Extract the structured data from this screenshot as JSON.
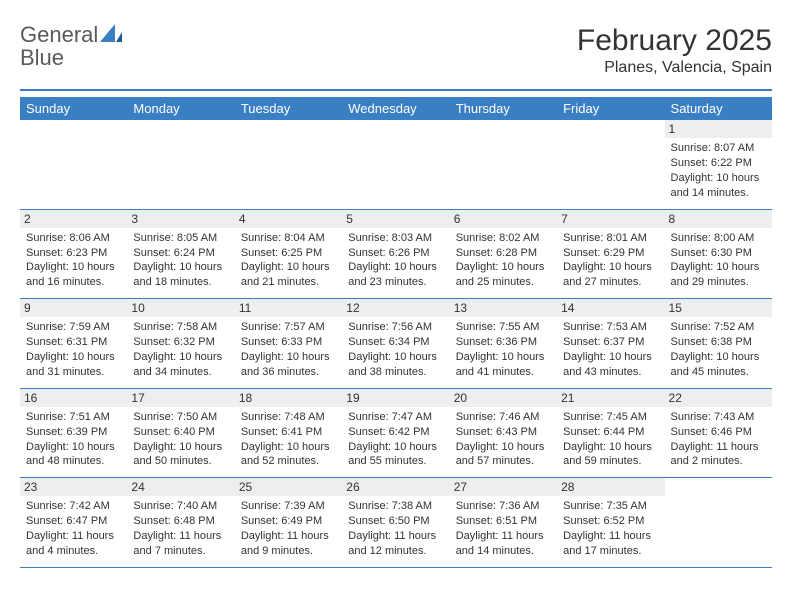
{
  "logo": {
    "word1": "General",
    "word2": "Blue"
  },
  "title": "February 2025",
  "subtitle": "Planes, Valencia, Spain",
  "colors": {
    "accent": "#3a7fc4",
    "header_bg": "#3a7fc4",
    "header_text": "#ffffff",
    "daynum_bg": "#eceeef",
    "text": "#333333",
    "logo_gray": "#5a5a5a"
  },
  "weekdays": [
    "Sunday",
    "Monday",
    "Tuesday",
    "Wednesday",
    "Thursday",
    "Friday",
    "Saturday"
  ],
  "weeks": [
    [
      {
        "n": "",
        "sunrise": "",
        "sunset": "",
        "daylight": ""
      },
      {
        "n": "",
        "sunrise": "",
        "sunset": "",
        "daylight": ""
      },
      {
        "n": "",
        "sunrise": "",
        "sunset": "",
        "daylight": ""
      },
      {
        "n": "",
        "sunrise": "",
        "sunset": "",
        "daylight": ""
      },
      {
        "n": "",
        "sunrise": "",
        "sunset": "",
        "daylight": ""
      },
      {
        "n": "",
        "sunrise": "",
        "sunset": "",
        "daylight": ""
      },
      {
        "n": "1",
        "sunrise": "Sunrise: 8:07 AM",
        "sunset": "Sunset: 6:22 PM",
        "daylight": "Daylight: 10 hours and 14 minutes."
      }
    ],
    [
      {
        "n": "2",
        "sunrise": "Sunrise: 8:06 AM",
        "sunset": "Sunset: 6:23 PM",
        "daylight": "Daylight: 10 hours and 16 minutes."
      },
      {
        "n": "3",
        "sunrise": "Sunrise: 8:05 AM",
        "sunset": "Sunset: 6:24 PM",
        "daylight": "Daylight: 10 hours and 18 minutes."
      },
      {
        "n": "4",
        "sunrise": "Sunrise: 8:04 AM",
        "sunset": "Sunset: 6:25 PM",
        "daylight": "Daylight: 10 hours and 21 minutes."
      },
      {
        "n": "5",
        "sunrise": "Sunrise: 8:03 AM",
        "sunset": "Sunset: 6:26 PM",
        "daylight": "Daylight: 10 hours and 23 minutes."
      },
      {
        "n": "6",
        "sunrise": "Sunrise: 8:02 AM",
        "sunset": "Sunset: 6:28 PM",
        "daylight": "Daylight: 10 hours and 25 minutes."
      },
      {
        "n": "7",
        "sunrise": "Sunrise: 8:01 AM",
        "sunset": "Sunset: 6:29 PM",
        "daylight": "Daylight: 10 hours and 27 minutes."
      },
      {
        "n": "8",
        "sunrise": "Sunrise: 8:00 AM",
        "sunset": "Sunset: 6:30 PM",
        "daylight": "Daylight: 10 hours and 29 minutes."
      }
    ],
    [
      {
        "n": "9",
        "sunrise": "Sunrise: 7:59 AM",
        "sunset": "Sunset: 6:31 PM",
        "daylight": "Daylight: 10 hours and 31 minutes."
      },
      {
        "n": "10",
        "sunrise": "Sunrise: 7:58 AM",
        "sunset": "Sunset: 6:32 PM",
        "daylight": "Daylight: 10 hours and 34 minutes."
      },
      {
        "n": "11",
        "sunrise": "Sunrise: 7:57 AM",
        "sunset": "Sunset: 6:33 PM",
        "daylight": "Daylight: 10 hours and 36 minutes."
      },
      {
        "n": "12",
        "sunrise": "Sunrise: 7:56 AM",
        "sunset": "Sunset: 6:34 PM",
        "daylight": "Daylight: 10 hours and 38 minutes."
      },
      {
        "n": "13",
        "sunrise": "Sunrise: 7:55 AM",
        "sunset": "Sunset: 6:36 PM",
        "daylight": "Daylight: 10 hours and 41 minutes."
      },
      {
        "n": "14",
        "sunrise": "Sunrise: 7:53 AM",
        "sunset": "Sunset: 6:37 PM",
        "daylight": "Daylight: 10 hours and 43 minutes."
      },
      {
        "n": "15",
        "sunrise": "Sunrise: 7:52 AM",
        "sunset": "Sunset: 6:38 PM",
        "daylight": "Daylight: 10 hours and 45 minutes."
      }
    ],
    [
      {
        "n": "16",
        "sunrise": "Sunrise: 7:51 AM",
        "sunset": "Sunset: 6:39 PM",
        "daylight": "Daylight: 10 hours and 48 minutes."
      },
      {
        "n": "17",
        "sunrise": "Sunrise: 7:50 AM",
        "sunset": "Sunset: 6:40 PM",
        "daylight": "Daylight: 10 hours and 50 minutes."
      },
      {
        "n": "18",
        "sunrise": "Sunrise: 7:48 AM",
        "sunset": "Sunset: 6:41 PM",
        "daylight": "Daylight: 10 hours and 52 minutes."
      },
      {
        "n": "19",
        "sunrise": "Sunrise: 7:47 AM",
        "sunset": "Sunset: 6:42 PM",
        "daylight": "Daylight: 10 hours and 55 minutes."
      },
      {
        "n": "20",
        "sunrise": "Sunrise: 7:46 AM",
        "sunset": "Sunset: 6:43 PM",
        "daylight": "Daylight: 10 hours and 57 minutes."
      },
      {
        "n": "21",
        "sunrise": "Sunrise: 7:45 AM",
        "sunset": "Sunset: 6:44 PM",
        "daylight": "Daylight: 10 hours and 59 minutes."
      },
      {
        "n": "22",
        "sunrise": "Sunrise: 7:43 AM",
        "sunset": "Sunset: 6:46 PM",
        "daylight": "Daylight: 11 hours and 2 minutes."
      }
    ],
    [
      {
        "n": "23",
        "sunrise": "Sunrise: 7:42 AM",
        "sunset": "Sunset: 6:47 PM",
        "daylight": "Daylight: 11 hours and 4 minutes."
      },
      {
        "n": "24",
        "sunrise": "Sunrise: 7:40 AM",
        "sunset": "Sunset: 6:48 PM",
        "daylight": "Daylight: 11 hours and 7 minutes."
      },
      {
        "n": "25",
        "sunrise": "Sunrise: 7:39 AM",
        "sunset": "Sunset: 6:49 PM",
        "daylight": "Daylight: 11 hours and 9 minutes."
      },
      {
        "n": "26",
        "sunrise": "Sunrise: 7:38 AM",
        "sunset": "Sunset: 6:50 PM",
        "daylight": "Daylight: 11 hours and 12 minutes."
      },
      {
        "n": "27",
        "sunrise": "Sunrise: 7:36 AM",
        "sunset": "Sunset: 6:51 PM",
        "daylight": "Daylight: 11 hours and 14 minutes."
      },
      {
        "n": "28",
        "sunrise": "Sunrise: 7:35 AM",
        "sunset": "Sunset: 6:52 PM",
        "daylight": "Daylight: 11 hours and 17 minutes."
      },
      {
        "n": "",
        "sunrise": "",
        "sunset": "",
        "daylight": ""
      }
    ]
  ]
}
